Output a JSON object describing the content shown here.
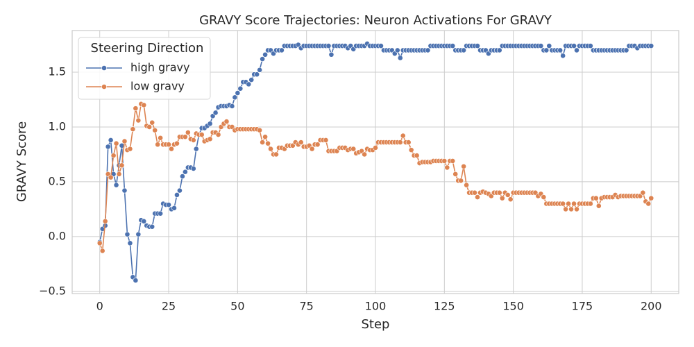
{
  "chart_data": {
    "type": "line",
    "title": "GRAVY Score Trajectories: Neuron Activations For GRAVY",
    "x_label": "Step",
    "y_label": "GRAVY Score",
    "legend_title": "Steering Direction",
    "legend_loc": "upper left",
    "grid": true,
    "xlim": [
      -10,
      210
    ],
    "ylim": [
      -0.52,
      1.88
    ],
    "xticks": [
      0,
      25,
      50,
      75,
      100,
      125,
      150,
      175,
      200
    ],
    "yticks": [
      {
        "value": -0.5,
        "label": "−0.5"
      },
      {
        "value": 0,
        "label": "0.0"
      },
      0.5,
      {
        "value": 1,
        "label": "1.0"
      },
      1.5
    ],
    "x": [
      0,
      1,
      2,
      3,
      4,
      5,
      6,
      7,
      8,
      9,
      10,
      11,
      12,
      13,
      14,
      15,
      16,
      17,
      18,
      19,
      20,
      21,
      22,
      23,
      24,
      25,
      26,
      27,
      28,
      29,
      30,
      31,
      32,
      33,
      34,
      35,
      36,
      37,
      38,
      39,
      40,
      41,
      42,
      43,
      44,
      45,
      46,
      47,
      48,
      49,
      50,
      51,
      52,
      53,
      54,
      55,
      56,
      57,
      58,
      59,
      60,
      61,
      62,
      63,
      64,
      65,
      66,
      67,
      68,
      69,
      70,
      71,
      72,
      73,
      74,
      75,
      76,
      77,
      78,
      79,
      80,
      81,
      82,
      83,
      84,
      85,
      86,
      87,
      88,
      89,
      90,
      91,
      92,
      93,
      94,
      95,
      96,
      97,
      98,
      99,
      100,
      101,
      102,
      103,
      104,
      105,
      106,
      107,
      108,
      109,
      110,
      111,
      112,
      113,
      114,
      115,
      116,
      117,
      118,
      119,
      120,
      121,
      122,
      123,
      124,
      125,
      126,
      127,
      128,
      129,
      130,
      131,
      132,
      133,
      134,
      135,
      136,
      137,
      138,
      139,
      140,
      141,
      142,
      143,
      144,
      145,
      146,
      147,
      148,
      149,
      150,
      151,
      152,
      153,
      154,
      155,
      156,
      157,
      158,
      159,
      160,
      161,
      162,
      163,
      164,
      165,
      166,
      167,
      168,
      169,
      170,
      171,
      172,
      173,
      174,
      175,
      176,
      177,
      178,
      179,
      180,
      181,
      182,
      183,
      184,
      185,
      186,
      187,
      188,
      189,
      190,
      191,
      192,
      193,
      194,
      195,
      196,
      197,
      198,
      199,
      200
    ],
    "series": [
      {
        "name": "high gravy",
        "color": "#4c72b0",
        "values": [
          -0.05,
          0.07,
          0.1,
          0.82,
          0.88,
          0.57,
          0.47,
          0.65,
          0.83,
          0.42,
          0.02,
          -0.06,
          -0.37,
          -0.4,
          0.02,
          0.15,
          0.14,
          0.1,
          0.09,
          0.09,
          0.21,
          0.21,
          0.21,
          0.3,
          0.29,
          0.29,
          0.25,
          0.26,
          0.38,
          0.42,
          0.55,
          0.59,
          0.63,
          0.63,
          0.62,
          0.8,
          0.93,
          0.99,
          0.99,
          1.01,
          1.03,
          1.1,
          1.13,
          1.18,
          1.19,
          1.19,
          1.19,
          1.2,
          1.19,
          1.27,
          1.31,
          1.35,
          1.41,
          1.41,
          1.39,
          1.43,
          1.48,
          1.48,
          1.52,
          1.62,
          1.66,
          1.7,
          1.7,
          1.67,
          1.7,
          1.7,
          1.7,
          1.74,
          1.74,
          1.74,
          1.74,
          1.74,
          1.75,
          1.72,
          1.74,
          1.74,
          1.74,
          1.74,
          1.74,
          1.74,
          1.74,
          1.74,
          1.74,
          1.74,
          1.66,
          1.74,
          1.74,
          1.74,
          1.74,
          1.74,
          1.72,
          1.74,
          1.71,
          1.74,
          1.74,
          1.74,
          1.74,
          1.76,
          1.74,
          1.74,
          1.74,
          1.74,
          1.74,
          1.7,
          1.7,
          1.7,
          1.7,
          1.67,
          1.7,
          1.63,
          1.7,
          1.7,
          1.7,
          1.7,
          1.7,
          1.7,
          1.7,
          1.7,
          1.7,
          1.7,
          1.74,
          1.74,
          1.74,
          1.74,
          1.74,
          1.74,
          1.74,
          1.74,
          1.74,
          1.7,
          1.7,
          1.7,
          1.7,
          1.74,
          1.74,
          1.74,
          1.74,
          1.74,
          1.7,
          1.7,
          1.7,
          1.67,
          1.7,
          1.7,
          1.7,
          1.7,
          1.74,
          1.74,
          1.74,
          1.74,
          1.74,
          1.74,
          1.74,
          1.74,
          1.74,
          1.74,
          1.74,
          1.74,
          1.74,
          1.74,
          1.74,
          1.7,
          1.7,
          1.74,
          1.7,
          1.7,
          1.7,
          1.7,
          1.65,
          1.74,
          1.74,
          1.74,
          1.74,
          1.7,
          1.74,
          1.74,
          1.74,
          1.74,
          1.74,
          1.7,
          1.7,
          1.7,
          1.7,
          1.7,
          1.7,
          1.7,
          1.7,
          1.7,
          1.7,
          1.7,
          1.7,
          1.7,
          1.74,
          1.74,
          1.74,
          1.72,
          1.74,
          1.74,
          1.74,
          1.74,
          1.74
        ]
      },
      {
        "name": "low gravy",
        "color": "#dd8452",
        "values": [
          -0.06,
          -0.13,
          0.14,
          0.57,
          0.54,
          0.74,
          0.85,
          0.57,
          0.65,
          0.87,
          0.79,
          0.8,
          0.98,
          1.17,
          1.06,
          1.21,
          1.2,
          1.01,
          1.0,
          1.04,
          0.97,
          0.84,
          0.9,
          0.84,
          0.84,
          0.84,
          0.8,
          0.84,
          0.85,
          0.91,
          0.91,
          0.91,
          0.95,
          0.89,
          0.88,
          0.94,
          0.93,
          0.93,
          0.87,
          0.88,
          0.89,
          0.95,
          0.95,
          0.93,
          1.0,
          1.03,
          1.05,
          1.0,
          1.0,
          0.97,
          0.98,
          0.98,
          0.98,
          0.98,
          0.98,
          0.98,
          0.98,
          0.98,
          0.97,
          0.86,
          0.91,
          0.85,
          0.8,
          0.75,
          0.75,
          0.81,
          0.81,
          0.8,
          0.83,
          0.83,
          0.83,
          0.86,
          0.84,
          0.86,
          0.82,
          0.82,
          0.83,
          0.8,
          0.84,
          0.84,
          0.88,
          0.88,
          0.88,
          0.78,
          0.78,
          0.78,
          0.78,
          0.81,
          0.81,
          0.81,
          0.79,
          0.8,
          0.8,
          0.76,
          0.77,
          0.78,
          0.75,
          0.8,
          0.79,
          0.79,
          0.81,
          0.86,
          0.86,
          0.86,
          0.86,
          0.86,
          0.86,
          0.86,
          0.86,
          0.86,
          0.92,
          0.86,
          0.86,
          0.79,
          0.74,
          0.74,
          0.67,
          0.68,
          0.68,
          0.68,
          0.68,
          0.69,
          0.69,
          0.69,
          0.69,
          0.69,
          0.63,
          0.69,
          0.69,
          0.57,
          0.51,
          0.51,
          0.64,
          0.47,
          0.4,
          0.4,
          0.4,
          0.36,
          0.4,
          0.41,
          0.4,
          0.39,
          0.37,
          0.4,
          0.4,
          0.4,
          0.35,
          0.4,
          0.38,
          0.34,
          0.4,
          0.4,
          0.4,
          0.4,
          0.4,
          0.4,
          0.4,
          0.4,
          0.4,
          0.37,
          0.39,
          0.36,
          0.3,
          0.3,
          0.3,
          0.3,
          0.3,
          0.3,
          0.3,
          0.25,
          0.3,
          0.25,
          0.3,
          0.25,
          0.3,
          0.3,
          0.3,
          0.3,
          0.3,
          0.35,
          0.35,
          0.28,
          0.35,
          0.36,
          0.36,
          0.36,
          0.36,
          0.38,
          0.36,
          0.37,
          0.37,
          0.37,
          0.37,
          0.37,
          0.37,
          0.37,
          0.37,
          0.4,
          0.32,
          0.3,
          0.35
        ]
      }
    ]
  }
}
